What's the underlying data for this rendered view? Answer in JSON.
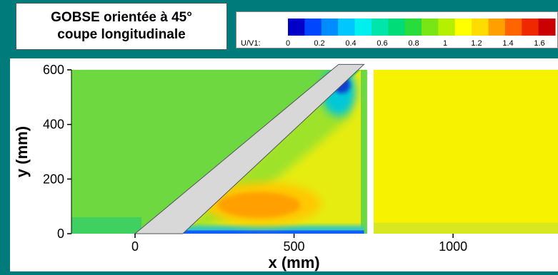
{
  "title_box": {
    "line1": "GOBSE orientée à 45°",
    "line2": "coupe longitudinale"
  },
  "chart_data": {
    "type": "heatmap",
    "title": "GOBSE orientée à 45° coupe longitudinale",
    "xlabel": "x (mm)",
    "ylabel": "y (mm)",
    "xlim": [
      -200,
      1330
    ],
    "ylim": [
      0,
      600
    ],
    "x_ticks": [
      0,
      500,
      1000
    ],
    "y_ticks": [
      0,
      200,
      400,
      600
    ],
    "colorbar": {
      "variable": "U/V1:",
      "ticks": [
        0,
        0.2,
        0.4,
        0.6,
        0.8,
        1,
        1.2,
        1.4,
        1.6
      ],
      "range": [
        0,
        1.7
      ],
      "colors": [
        "#0000c8",
        "#0046ff",
        "#008cff",
        "#00c8ff",
        "#00f0f0",
        "#00e6aa",
        "#00dc78",
        "#28dc3c",
        "#78e614",
        "#b4f000",
        "#ffff00",
        "#ffdc00",
        "#ffa000",
        "#ff6400",
        "#f02800",
        "#c80000"
      ]
    },
    "regions": [
      {
        "name": "upstream",
        "x_range": [
          -200,
          0
        ],
        "value": 0.9
      },
      {
        "name": "downstream",
        "x_range": [
          730,
          1330
        ],
        "value": 1.15
      },
      {
        "name": "high-velocity-zone",
        "x_center": 400,
        "y_center": 100,
        "value": 1.3
      },
      {
        "name": "low-velocity-zone",
        "x_center": 620,
        "y_center": 540,
        "value": 0.1
      }
    ],
    "obstacle": {
      "name": "inclined-plate",
      "angle_deg": 45,
      "x_base": [
        0,
        150
      ],
      "y_top": 620
    }
  }
}
